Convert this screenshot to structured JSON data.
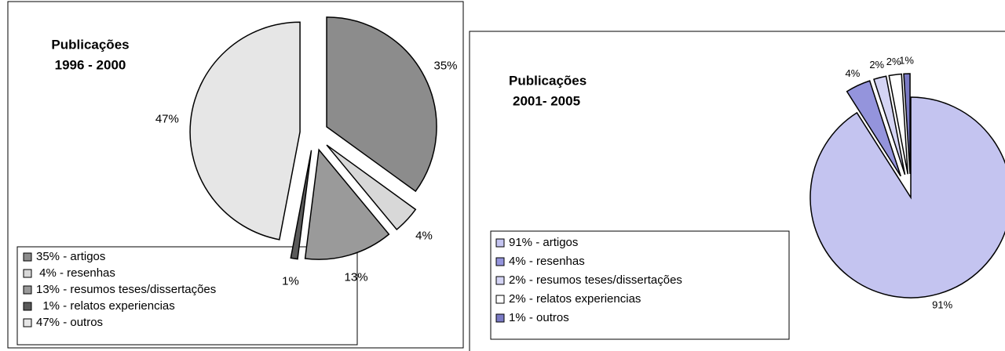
{
  "chart_data": [
    {
      "type": "pie",
      "title": "Publicações",
      "subtitle": "1996 - 2000",
      "values": [
        35,
        4,
        13,
        1,
        47
      ],
      "value_labels": [
        "35%",
        "4%",
        "13%",
        "1%",
        "47%"
      ],
      "categories": [
        "35% - artigos",
        " 4% - resenhas",
        "13% - resumos teses/dissertações",
        "  1% - relatos experiencias",
        "47% - outros"
      ],
      "colors": [
        "#8c8c8c",
        "#d8d8d8",
        "#9a9a9a",
        "#5a5a5a",
        "#e6e6e6"
      ]
    },
    {
      "type": "pie",
      "title": "Publicações",
      "subtitle": "2001- 2005",
      "values": [
        91,
        4,
        2,
        2,
        1
      ],
      "value_labels": [
        "91%",
        "4%",
        "2%",
        "2%",
        "1%"
      ],
      "categories": [
        "91% - artigos",
        "4% - resenhas",
        "2% - resumos teses/dissertações",
        "2% - relatos experiencias",
        "1% - outros"
      ],
      "colors": [
        "#c4c4f0",
        "#9494dc",
        "#d4d4f4",
        "#ffffff",
        "#7a7ac4"
      ]
    }
  ]
}
